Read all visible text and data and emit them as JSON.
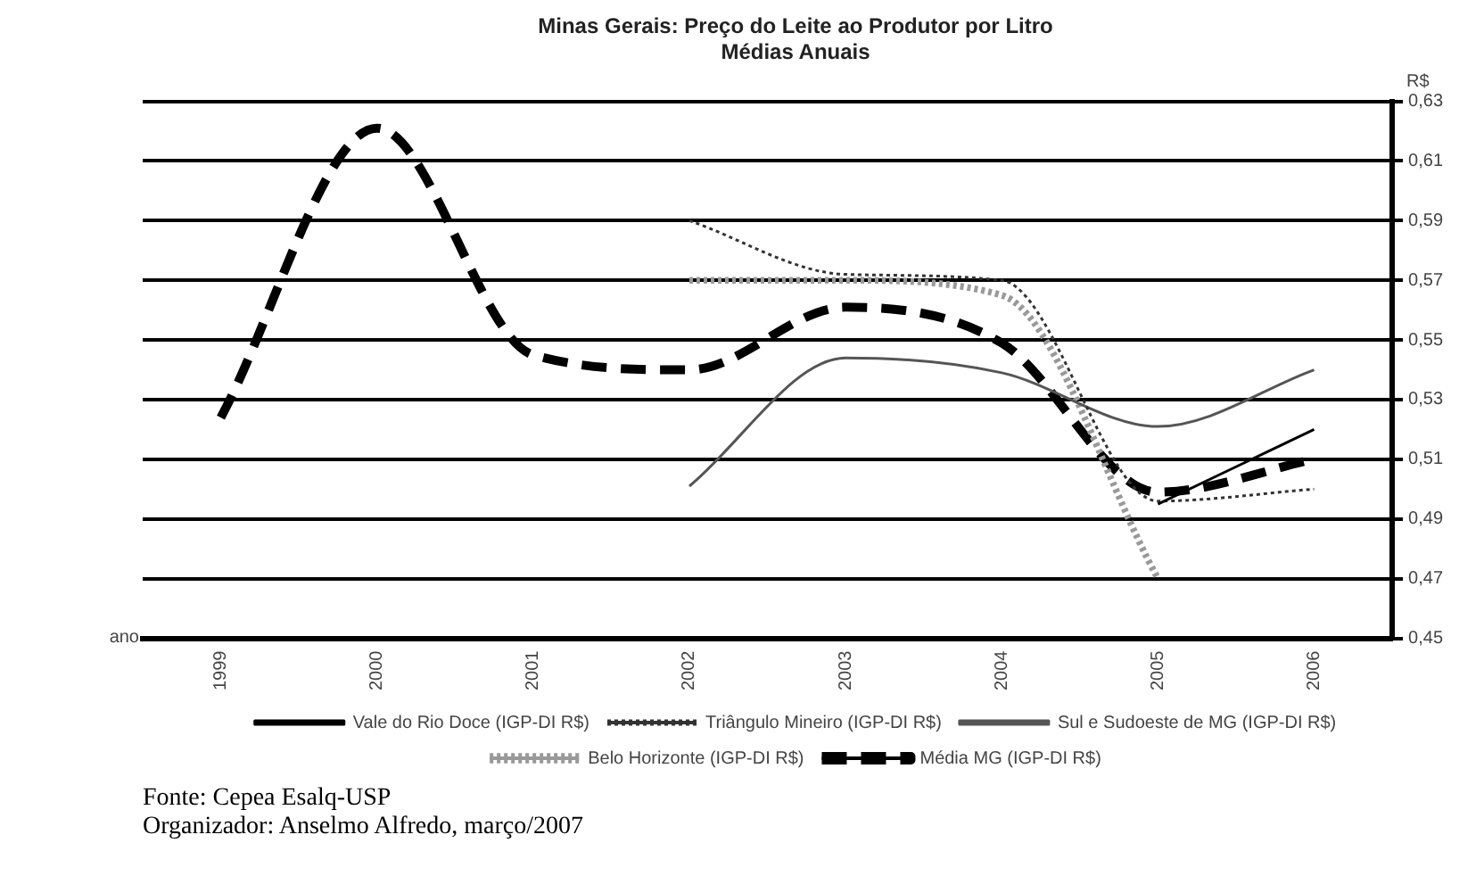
{
  "chart_data": {
    "type": "line",
    "title": "Minas Gerais: Preço do Leite ao Produtor por Litro",
    "subtitle": "Médias Anuais",
    "xlabel": "ano",
    "ylabel": "R$",
    "categories": [
      "1999",
      "2000",
      "2001",
      "2002",
      "2003",
      "2004",
      "2005",
      "2006"
    ],
    "series": [
      {
        "name": "Vale do Rio Doce (IGP-DI R$)",
        "color": "#000000",
        "line_style": "solid",
        "values": [
          null,
          null,
          null,
          null,
          null,
          null,
          0.495,
          0.52
        ]
      },
      {
        "name": "Triângulo Mineiro (IGP-DI R$)",
        "color": "#333333",
        "line_style": "dotted",
        "values": [
          null,
          null,
          null,
          0.59,
          0.572,
          0.57,
          0.496,
          0.5
        ]
      },
      {
        "name": "Sul e Sudoeste de MG (IGP-DI R$)",
        "color": "#555555",
        "line_style": "solid",
        "values": [
          null,
          null,
          null,
          0.501,
          0.544,
          0.539,
          0.521,
          0.54
        ]
      },
      {
        "name": "Belo Horizonte (IGP-DI R$)",
        "color": "#999999",
        "line_style": "dotted",
        "values": [
          null,
          null,
          null,
          0.57,
          0.57,
          0.565,
          0.47,
          null
        ]
      },
      {
        "name": "Média MG (IGP-DI R$)",
        "color": "#000000",
        "line_style": "dashed",
        "values": [
          0.524,
          0.621,
          0.545,
          0.54,
          0.561,
          0.549,
          0.499,
          0.51
        ]
      }
    ],
    "ylim": [
      0.45,
      0.63
    ],
    "yticks": [
      {
        "value": 0.45,
        "label": "0,45"
      },
      {
        "value": 0.47,
        "label": "0,47"
      },
      {
        "value": 0.49,
        "label": "0,49"
      },
      {
        "value": 0.51,
        "label": "0,51"
      },
      {
        "value": 0.53,
        "label": "0,53"
      },
      {
        "value": 0.55,
        "label": "0,55"
      },
      {
        "value": 0.57,
        "label": "0,57"
      },
      {
        "value": 0.59,
        "label": "0,59"
      },
      {
        "value": 0.61,
        "label": "0,61"
      },
      {
        "value": 0.63,
        "label": "0,63"
      }
    ],
    "grid": "y",
    "legend": "bottom",
    "marker": "none",
    "annotations": [
      "Fonte: Cepea Esalq-USP",
      "Organizador: Anselmo Alfredo, março/2007"
    ]
  }
}
